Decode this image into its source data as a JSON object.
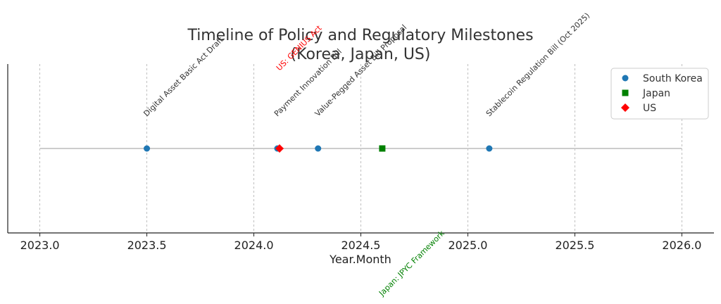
{
  "chart_data": {
    "type": "scatter",
    "title_lines": [
      "Timeline of Policy and Regulatory Milestones",
      "(Korea, Japan, US)"
    ],
    "xlabel": "Year.Month",
    "ylabel": "",
    "xlim": [
      2022.85,
      2026.15
    ],
    "ylim": [
      -1,
      1
    ],
    "x_ticks": [
      2023.0,
      2023.5,
      2024.0,
      2024.5,
      2025.0,
      2025.5,
      2026.0
    ],
    "x_tick_labels": [
      "2023.0",
      "2023.5",
      "2024.0",
      "2024.5",
      "2025.0",
      "2025.5",
      "2026.0"
    ],
    "grid": "x",
    "legend_position": "top-right",
    "timeline_line": {
      "from": 2023.0,
      "to": 2026.0,
      "y": 0,
      "color": "#cccccc"
    },
    "series": [
      {
        "name": "South Korea",
        "color": "#1f77b4",
        "marker": "circle",
        "points": [
          {
            "x": 2023.5,
            "y": 0,
            "label": "Digital Asset Basic Act Draft",
            "label_side": "above"
          },
          {
            "x": 2024.11,
            "y": 0,
            "label": "Payment Innovation Bill",
            "label_side": "above"
          },
          {
            "x": 2024.3,
            "y": 0,
            "label": "Value-Pegged Asset Bill Proposal",
            "label_side": "above"
          },
          {
            "x": 2025.1,
            "y": 0,
            "label": "Stablecoin Regulation Bill (Oct 2025)",
            "label_side": "above"
          }
        ]
      },
      {
        "name": "Japan",
        "color": "#008000",
        "marker": "square",
        "points": [
          {
            "x": 2024.6,
            "y": 0,
            "label": "Japan: JPYC Framework",
            "label_side": "below"
          }
        ]
      },
      {
        "name": "US",
        "color": "#ff0000",
        "marker": "diamond",
        "points": [
          {
            "x": 2024.12,
            "y": 0,
            "label": "US: GENIUS Act",
            "label_side": "above-high"
          }
        ]
      }
    ]
  }
}
